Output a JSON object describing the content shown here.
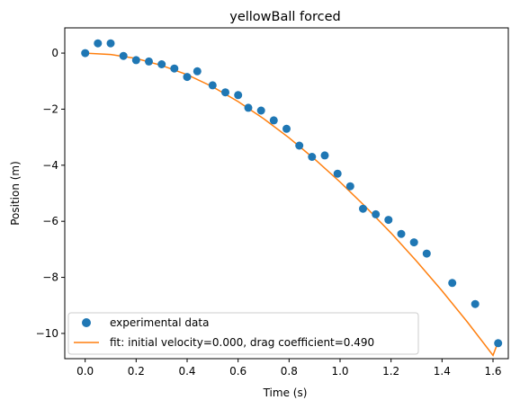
{
  "chart_data": {
    "type": "scatter",
    "title": "yellowBall forced",
    "xlabel": "Time (s)",
    "ylabel": "Position (m)",
    "xlim": [
      -0.08,
      1.66
    ],
    "ylim": [
      -10.9,
      0.9
    ],
    "xticks": [
      0.0,
      0.2,
      0.4,
      0.6,
      0.8,
      1.0,
      1.2,
      1.4,
      1.6
    ],
    "xtick_labels": [
      "0.0",
      "0.2",
      "0.4",
      "0.6",
      "0.8",
      "1.0",
      "1.2",
      "1.4",
      "1.6"
    ],
    "yticks": [
      0,
      -2,
      -4,
      -6,
      -8,
      -10
    ],
    "ytick_labels": [
      "0",
      "−2",
      "−4",
      "−6",
      "−8",
      "−10"
    ],
    "grid": false,
    "legend_position": "lower-left",
    "series": [
      {
        "name": "experimental data",
        "kind": "scatter",
        "color": "#1f77b4",
        "x": [
          0.0,
          0.05,
          0.1,
          0.15,
          0.2,
          0.25,
          0.3,
          0.35,
          0.4,
          0.44,
          0.5,
          0.55,
          0.6,
          0.64,
          0.69,
          0.74,
          0.79,
          0.84,
          0.89,
          0.94,
          0.99,
          1.04,
          1.09,
          1.14,
          1.19,
          1.24,
          1.29,
          1.34,
          1.44,
          1.53,
          1.62
        ],
        "y": [
          0.0,
          0.35,
          0.35,
          -0.1,
          -0.25,
          -0.3,
          -0.4,
          -0.55,
          -0.85,
          -0.65,
          -1.15,
          -1.4,
          -1.5,
          -1.95,
          -2.05,
          -2.4,
          -2.7,
          -3.3,
          -3.7,
          -3.65,
          -4.3,
          -4.75,
          -5.55,
          -5.75,
          -5.95,
          -6.45,
          -6.75,
          -7.15,
          -8.2,
          -8.95,
          -10.35
        ]
      },
      {
        "name": "fit: initial velocity=0.000, drag coefficient=0.490",
        "kind": "line",
        "color": "#ff7f0e",
        "x": [
          0.0,
          0.1,
          0.2,
          0.3,
          0.4,
          0.5,
          0.6,
          0.7,
          0.8,
          0.9,
          1.0,
          1.1,
          1.2,
          1.3,
          1.4,
          1.5,
          1.6,
          1.62
        ],
        "y": [
          0.0,
          -0.05,
          -0.19,
          -0.44,
          -0.77,
          -1.2,
          -1.73,
          -2.34,
          -3.02,
          -3.78,
          -4.6,
          -5.48,
          -6.42,
          -7.42,
          -8.48,
          -9.6,
          -10.78,
          -10.3
        ]
      }
    ]
  }
}
